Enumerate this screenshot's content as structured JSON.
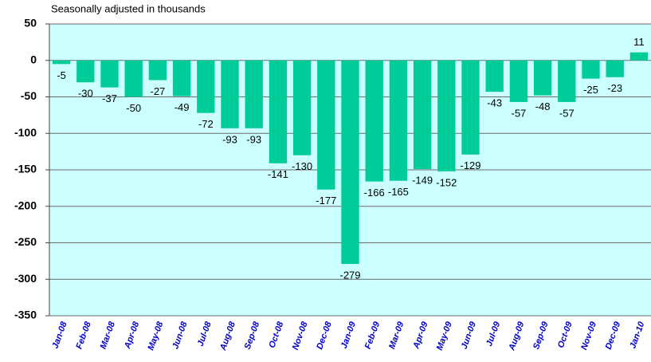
{
  "chart_data": {
    "type": "bar",
    "subtitle": "Seasonally adjusted in thousands",
    "categories": [
      "Jan-08",
      "Feb-08",
      "Mar-08",
      "Apr-08",
      "May-08",
      "Jun-08",
      "Jul-08",
      "Aug-08",
      "Sep-08",
      "Oct-08",
      "Nov-08",
      "Dec-08",
      "Jan-09",
      "Feb-09",
      "Mar-09",
      "Apr-09",
      "May-09",
      "Jun-09",
      "Jul-09",
      "Aug-09",
      "Sep-09",
      "Oct-09",
      "Nov-09",
      "Dec-09",
      "Jan-10"
    ],
    "values": [
      -5,
      -30,
      -37,
      -50,
      -27,
      -49,
      -72,
      -93,
      -93,
      -141,
      -130,
      -177,
      -279,
      -166,
      -165,
      -149,
      -152,
      -129,
      -43,
      -57,
      -48,
      -57,
      -25,
      -23,
      11
    ],
    "color": "#00cc99",
    "ylim": [
      -350,
      50
    ],
    "yticks": [
      -350,
      -300,
      -250,
      -200,
      -150,
      -100,
      -50,
      0,
      50
    ],
    "grid": true
  }
}
